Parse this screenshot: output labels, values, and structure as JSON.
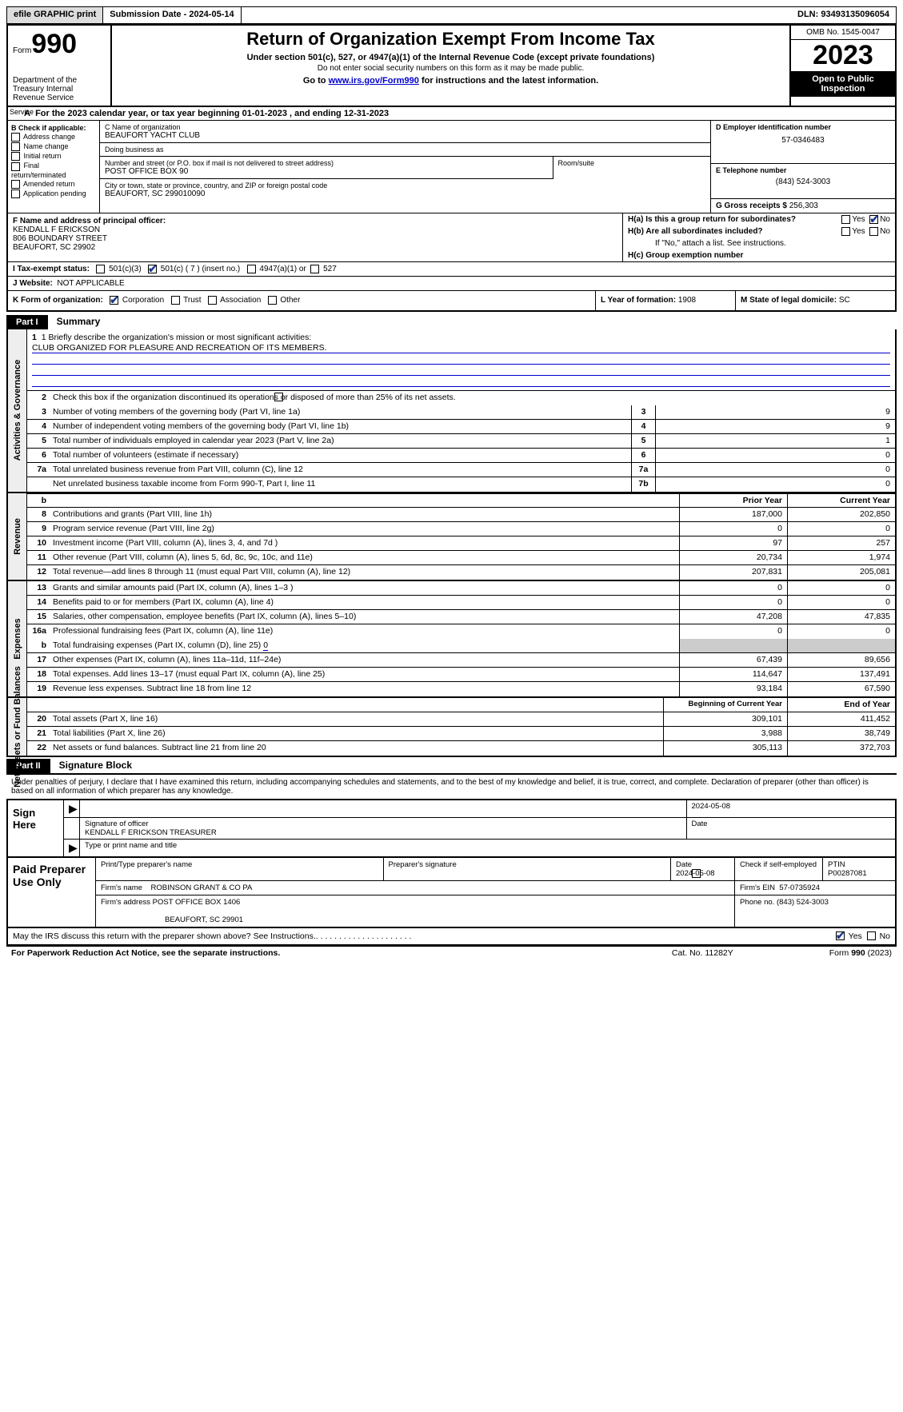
{
  "topbar": {
    "efile": "efile GRAPHIC print",
    "submission_label": "Submission Date - ",
    "submission_date": "2024-05-14",
    "dln_label": "DLN: ",
    "dln": "93493135096054"
  },
  "header": {
    "form_label": "Form",
    "form_num": "990",
    "dept": "Department of the Treasury\nInternal Revenue Service",
    "title": "Return of Organization Exempt From Income Tax",
    "sub": "Under section 501(c), 527, or 4947(a)(1) of the Internal Revenue Code (except private foundations)",
    "note": "Do not enter social security numbers on this form as it may be made public.",
    "link_pre": "Go to ",
    "link": "www.irs.gov/Form990",
    "link_post": " for instructions and the latest information.",
    "omb": "OMB No. 1545-0047",
    "year": "2023",
    "inspect": "Open to Public Inspection"
  },
  "row_a": {
    "text": "For the 2023 calendar year, or tax year beginning 01-01-2023    , and ending 12-31-2023",
    "prefix": "A"
  },
  "box_b": {
    "title": "B Check if applicable:",
    "items": [
      "Address change",
      "Name change",
      "Initial return",
      "Final return/terminated",
      "Amended return",
      "Application pending"
    ]
  },
  "box_c": {
    "name_lbl": "C Name of organization",
    "name": "BEAUFORT YACHT CLUB",
    "dba_lbl": "Doing business as",
    "dba": "",
    "street_lbl": "Number and street (or P.O. box if mail is not delivered to street address)",
    "street": "POST OFFICE BOX 90",
    "room_lbl": "Room/suite",
    "city_lbl": "City or town, state or province, country, and ZIP or foreign postal code",
    "city": "BEAUFORT, SC  299010090"
  },
  "box_d": {
    "lbl": "D Employer identification number",
    "val": "57-0346483"
  },
  "box_e": {
    "lbl": "E Telephone number",
    "val": "(843) 524-3003"
  },
  "box_g": {
    "lbl": "G Gross receipts $ ",
    "val": "256,303"
  },
  "box_f": {
    "lbl": "F  Name and address of principal officer:",
    "name": "KENDALL F ERICKSON",
    "street": "806 BOUNDARY STREET",
    "city": "BEAUFORT, SC  29902"
  },
  "box_h": {
    "ha": "H(a)  Is this a group return for subordinates?",
    "hb": "H(b)  Are all subordinates included?",
    "hb_note": "If \"No,\" attach a list. See instructions.",
    "hc": "H(c)  Group exemption number",
    "yes": "Yes",
    "no": "No"
  },
  "row_i": {
    "lbl": "I   Tax-exempt status:",
    "opt1": "501(c)(3)",
    "opt2": "501(c) ( 7 ) (insert no.)",
    "opt3": "4947(a)(1) or",
    "opt4": "527"
  },
  "row_j": {
    "lbl": "J   Website:",
    "val": "NOT APPLICABLE"
  },
  "row_k": {
    "lbl": "K Form of organization:",
    "opts": [
      "Corporation",
      "Trust",
      "Association",
      "Other"
    ],
    "l_lbl": "L Year of formation: ",
    "l_val": "1908",
    "m_lbl": "M State of legal domicile: ",
    "m_val": "SC"
  },
  "part1": {
    "hdr": "Part I",
    "title": "Summary",
    "line1_lbl": "1  Briefly describe the organization's mission or most significant activities:",
    "mission": "CLUB ORGANIZED FOR PLEASURE AND RECREATION OF ITS MEMBERS.",
    "line2": "Check this box       if the organization discontinued its operations or disposed of more than 25% of its net assets.",
    "prior_hdr": "Prior Year",
    "curr_hdr": "Current Year",
    "beg_hdr": "Beginning of Current Year",
    "end_hdr": "End of Year",
    "tabs": {
      "gov": "Activities & Governance",
      "rev": "Revenue",
      "exp": "Expenses",
      "net": "Net Assets or Fund Balances"
    },
    "rows_single": [
      {
        "n": "3",
        "d": "Number of voting members of the governing body (Part VI, line 1a)",
        "box": "3",
        "v": "9"
      },
      {
        "n": "4",
        "d": "Number of independent voting members of the governing body (Part VI, line 1b)",
        "box": "4",
        "v": "9"
      },
      {
        "n": "5",
        "d": "Total number of individuals employed in calendar year 2023 (Part V, line 2a)",
        "box": "5",
        "v": "1"
      },
      {
        "n": "6",
        "d": "Total number of volunteers (estimate if necessary)",
        "box": "6",
        "v": "0"
      },
      {
        "n": "7a",
        "d": "Total unrelated business revenue from Part VIII, column (C), line 12",
        "box": "7a",
        "v": "0"
      },
      {
        "n": "",
        "d": "Net unrelated business taxable income from Form 990-T, Part I, line 11",
        "box": "7b",
        "v": "0"
      }
    ],
    "rows_rev": [
      {
        "n": "8",
        "d": "Contributions and grants (Part VIII, line 1h)",
        "p": "187,000",
        "c": "202,850"
      },
      {
        "n": "9",
        "d": "Program service revenue (Part VIII, line 2g)",
        "p": "0",
        "c": "0"
      },
      {
        "n": "10",
        "d": "Investment income (Part VIII, column (A), lines 3, 4, and 7d )",
        "p": "97",
        "c": "257"
      },
      {
        "n": "11",
        "d": "Other revenue (Part VIII, column (A), lines 5, 6d, 8c, 9c, 10c, and 11e)",
        "p": "20,734",
        "c": "1,974"
      },
      {
        "n": "12",
        "d": "Total revenue—add lines 8 through 11 (must equal Part VIII, column (A), line 12)",
        "p": "207,831",
        "c": "205,081"
      }
    ],
    "rows_exp": [
      {
        "n": "13",
        "d": "Grants and similar amounts paid (Part IX, column (A), lines 1–3 )",
        "p": "0",
        "c": "0"
      },
      {
        "n": "14",
        "d": "Benefits paid to or for members (Part IX, column (A), line 4)",
        "p": "0",
        "c": "0"
      },
      {
        "n": "15",
        "d": "Salaries, other compensation, employee benefits (Part IX, column (A), lines 5–10)",
        "p": "47,208",
        "c": "47,835"
      },
      {
        "n": "16a",
        "d": "Professional fundraising fees (Part IX, column (A), line 11e)",
        "p": "0",
        "c": "0"
      }
    ],
    "line16b": {
      "n": "b",
      "d": "Total fundraising expenses (Part IX, column (D), line 25) ",
      "v": "0"
    },
    "rows_exp2": [
      {
        "n": "17",
        "d": "Other expenses (Part IX, column (A), lines 11a–11d, 11f–24e)",
        "p": "67,439",
        "c": "89,656"
      },
      {
        "n": "18",
        "d": "Total expenses. Add lines 13–17 (must equal Part IX, column (A), line 25)",
        "p": "114,647",
        "c": "137,491"
      },
      {
        "n": "19",
        "d": "Revenue less expenses. Subtract line 18 from line 12",
        "p": "93,184",
        "c": "67,590"
      }
    ],
    "rows_net": [
      {
        "n": "20",
        "d": "Total assets (Part X, line 16)",
        "p": "309,101",
        "c": "411,452"
      },
      {
        "n": "21",
        "d": "Total liabilities (Part X, line 26)",
        "p": "3,988",
        "c": "38,749"
      },
      {
        "n": "22",
        "d": "Net assets or fund balances. Subtract line 21 from line 20",
        "p": "305,113",
        "c": "372,703"
      }
    ]
  },
  "part2": {
    "hdr": "Part II",
    "title": "Signature Block"
  },
  "sig": {
    "intro": "Under penalties of perjury, I declare that I have examined this return, including accompanying schedules and statements, and to the best of my knowledge and belief, it is true, correct, and complete. Declaration of preparer (other than officer) is based on all information of which preparer has any knowledge.",
    "sign_here": "Sign Here",
    "sig_lbl": "Signature of officer",
    "date_lbl": "Date",
    "date_val": "2024-05-08",
    "name": "KENDALL F ERICKSON  TREASURER",
    "name_lbl": "Type or print name and title"
  },
  "prep": {
    "title": "Paid Preparer Use Only",
    "print_lbl": "Print/Type preparer's name",
    "sig_lbl": "Preparer's signature",
    "date_lbl": "Date",
    "date_val": "2024-05-08",
    "check_lbl": "Check        if self-employed",
    "ptin_lbl": "PTIN",
    "ptin": "P00287081",
    "firm_name_lbl": "Firm's name",
    "firm_name": "ROBINSON GRANT & CO PA",
    "firm_ein_lbl": "Firm's EIN",
    "firm_ein": "57-0735924",
    "firm_addr_lbl": "Firm's address",
    "firm_addr1": "POST OFFICE BOX 1406",
    "firm_addr2": "BEAUFORT, SC  29901",
    "phone_lbl": "Phone no.",
    "phone": "(843) 524-3003"
  },
  "discuss": {
    "text": "May the IRS discuss this return with the preparer shown above? See Instructions.",
    "yes": "Yes",
    "no": "No"
  },
  "footer": {
    "left": "For Paperwork Reduction Act Notice, see the separate instructions.",
    "mid": "Cat. No. 11282Y",
    "right": "Form 990 (2023)"
  }
}
